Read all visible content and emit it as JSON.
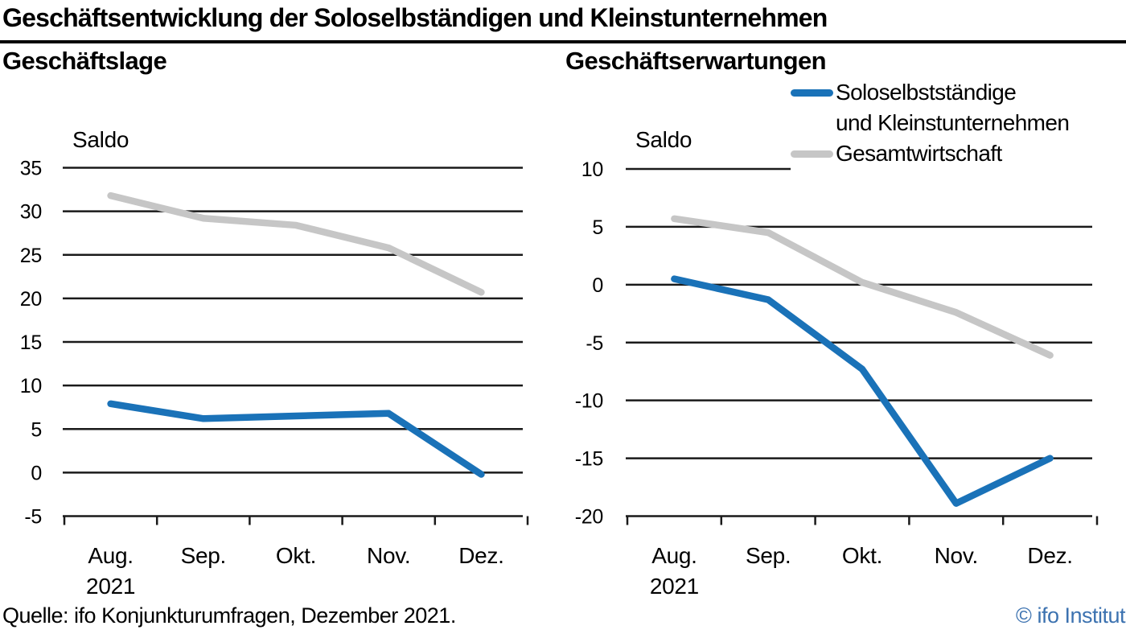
{
  "header": {
    "title": "Geschäftsentwicklung der Soloselbständigen und Kleinstunternehmen"
  },
  "panels": {
    "left_subtitle": "Geschäftslage",
    "right_subtitle": "Geschäftserwartungen"
  },
  "legend": {
    "series1_line1": "Soloselbstständige",
    "series1_line2": "und Kleinstunternehmen",
    "series2": "Gesamtwirtschaft"
  },
  "colors": {
    "solo_blue": "#1a72b8",
    "gesamt_gray": "#c6c6c6",
    "gridline_black": "#1a1a1a",
    "copyright_blue": "#3c72b0"
  },
  "footer": {
    "source": "Quelle: ifo Konjunkturumfragen, Dezember 2021.",
    "copyright": "© ifo Institut"
  },
  "chart_data": [
    {
      "type": "line",
      "title": "Geschäftslage",
      "axis_label": "Saldo",
      "xlabel": "",
      "ylabel": "Saldo",
      "categories": [
        "Aug.",
        "Sep.",
        "Okt.",
        "Nov.",
        "Dez."
      ],
      "first_category_sub": "2021",
      "ylim": [
        -5,
        35
      ],
      "ytick_step": 5,
      "grid": true,
      "legend_position": "none",
      "series": [
        {
          "name": "Gesamtwirtschaft",
          "color_key": "gesamt_gray",
          "values": [
            31.8,
            29.2,
            28.4,
            25.8,
            20.7
          ]
        },
        {
          "name": "Soloselbstständige und Kleinstunternehmen",
          "color_key": "solo_blue",
          "values": [
            7.9,
            6.2,
            6.5,
            6.8,
            -0.2
          ]
        }
      ]
    },
    {
      "type": "line",
      "title": "Geschäftserwartungen",
      "axis_label": "Saldo",
      "xlabel": "",
      "ylabel": "Saldo",
      "categories": [
        "Aug.",
        "Sep.",
        "Okt.",
        "Nov.",
        "Dez."
      ],
      "first_category_sub": "2021",
      "ylim": [
        -20,
        10
      ],
      "ytick_step": 5,
      "grid": true,
      "legend_position": "top-right",
      "series": [
        {
          "name": "Gesamtwirtschaft",
          "color_key": "gesamt_gray",
          "values": [
            5.7,
            4.5,
            0.2,
            -2.4,
            -6.1
          ]
        },
        {
          "name": "Soloselbstständige und Kleinstunternehmen",
          "color_key": "solo_blue",
          "values": [
            0.5,
            -1.3,
            -7.3,
            -18.9,
            -15.0
          ]
        }
      ]
    }
  ]
}
